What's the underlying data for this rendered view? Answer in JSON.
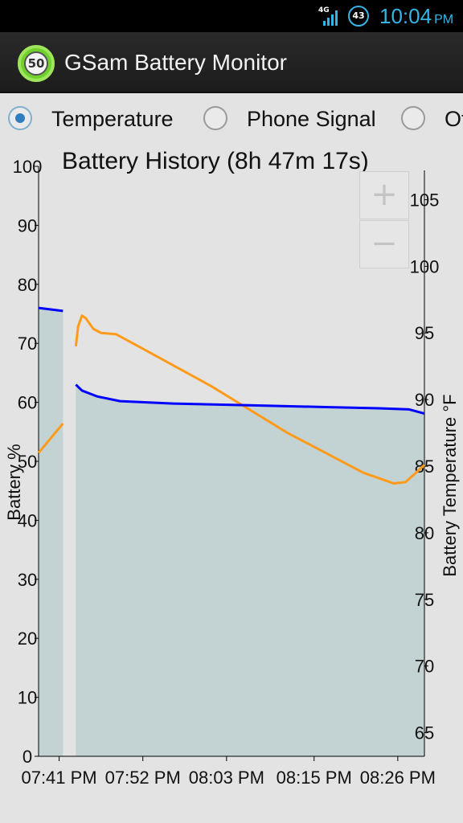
{
  "status_bar": {
    "network_label": "4G",
    "badge_count": "43",
    "time": "10:04",
    "ampm": "PM"
  },
  "action_bar": {
    "logo_value": "50",
    "title": "GSam Battery Monitor"
  },
  "radio_options": [
    {
      "label": "Temperature",
      "checked": true
    },
    {
      "label": "Phone Signal",
      "checked": false
    },
    {
      "label": "Ot",
      "checked": false
    }
  ],
  "zoom": {
    "in_label": "+",
    "out_label": "−"
  },
  "colors": {
    "battery_line": "#0000ff",
    "temperature_line": "#ff9a1a",
    "battery_fill": "#c3d2d2",
    "accent": "#33b5e5"
  },
  "chart_data": {
    "type": "line",
    "title": "Battery History (8h 47m 17s)",
    "ylabel": "Battery %",
    "y2label": "Battery Temperature °F",
    "ylim": [
      0,
      100
    ],
    "y2lim": [
      62.8,
      107.2
    ],
    "yticks": [
      "0",
      "10",
      "20",
      "30",
      "40",
      "50",
      "60",
      "70",
      "80",
      "90",
      "100"
    ],
    "y2ticks": [
      "65",
      "70",
      "75",
      "80",
      "85",
      "90",
      "95",
      "100",
      "105"
    ],
    "xticks": [
      "07:41 PM",
      "07:52 PM",
      "08:03 PM",
      "08:15 PM",
      "08:26 PM"
    ],
    "xtick_minutes": [
      0,
      11,
      22,
      33.5,
      44.5
    ],
    "xlim_minutes": [
      -2.7,
      48.0
    ],
    "grid": false,
    "series": [
      {
        "name": "Battery %",
        "axis": "left",
        "segments": [
          [
            [
              -2.7,
              76
            ],
            [
              0.5,
              75.5
            ]
          ],
          [
            [
              2.2,
              63
            ],
            [
              3,
              62
            ],
            [
              5,
              61
            ],
            [
              8,
              60.2
            ],
            [
              15,
              59.8
            ],
            [
              25,
              59.5
            ],
            [
              35,
              59.2
            ],
            [
              42,
              59
            ],
            [
              46,
              58.8
            ],
            [
              48,
              58.1
            ]
          ]
        ]
      },
      {
        "name": "Battery Temperature °F",
        "axis": "right",
        "segments": [
          [
            [
              -2.7,
              86
            ],
            [
              0.5,
              88.2
            ]
          ],
          [
            [
              2.2,
              94
            ],
            [
              2.5,
              95.5
            ],
            [
              3.0,
              96.3
            ],
            [
              3.5,
              96.1
            ],
            [
              4.5,
              95.3
            ],
            [
              5.5,
              95.0
            ],
            [
              7.5,
              94.9
            ],
            [
              12,
              93.5
            ],
            [
              20,
              91.0
            ],
            [
              30,
              87.5
            ],
            [
              40,
              84.5
            ],
            [
              44,
              83.7
            ],
            [
              45.5,
              83.8
            ],
            [
              46.5,
              84.3
            ],
            [
              48,
              85.1
            ]
          ]
        ]
      }
    ]
  }
}
